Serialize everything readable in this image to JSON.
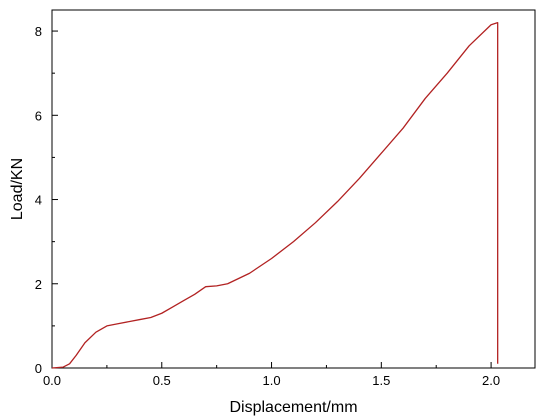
{
  "chart_data": {
    "type": "line",
    "title": "",
    "xlabel": "Displacement/mm",
    "ylabel": "Load/KN",
    "xlim": [
      0.0,
      2.2
    ],
    "ylim": [
      0,
      8.5
    ],
    "x_ticks": [
      0.0,
      0.5,
      1.0,
      1.5,
      2.0
    ],
    "x_tick_labels": [
      "0.0",
      "0.5",
      "1.0",
      "1.5",
      "2.0"
    ],
    "y_ticks": [
      0,
      2,
      4,
      6,
      8
    ],
    "y_tick_labels": [
      "0",
      "2",
      "4",
      "6",
      "8"
    ],
    "grid": false,
    "legend": "none",
    "line_color": "#b22222",
    "series": [
      {
        "x": [
          0.0,
          0.05,
          0.08,
          0.11,
          0.15,
          0.2,
          0.25,
          0.3,
          0.4,
          0.45,
          0.5,
          0.55,
          0.6,
          0.65,
          0.7,
          0.75,
          0.8,
          0.9,
          1.0,
          1.1,
          1.2,
          1.3,
          1.4,
          1.5,
          1.6,
          1.7,
          1.8,
          1.9,
          2.0,
          2.03,
          2.03,
          2.03
        ],
        "y": [
          0.0,
          0.02,
          0.1,
          0.3,
          0.6,
          0.85,
          1.0,
          1.05,
          1.15,
          1.2,
          1.3,
          1.45,
          1.6,
          1.75,
          1.93,
          1.95,
          2.0,
          2.25,
          2.6,
          3.0,
          3.45,
          3.95,
          4.5,
          5.1,
          5.7,
          6.4,
          7.0,
          7.65,
          8.15,
          8.2,
          2.0,
          0.1
        ]
      }
    ]
  }
}
